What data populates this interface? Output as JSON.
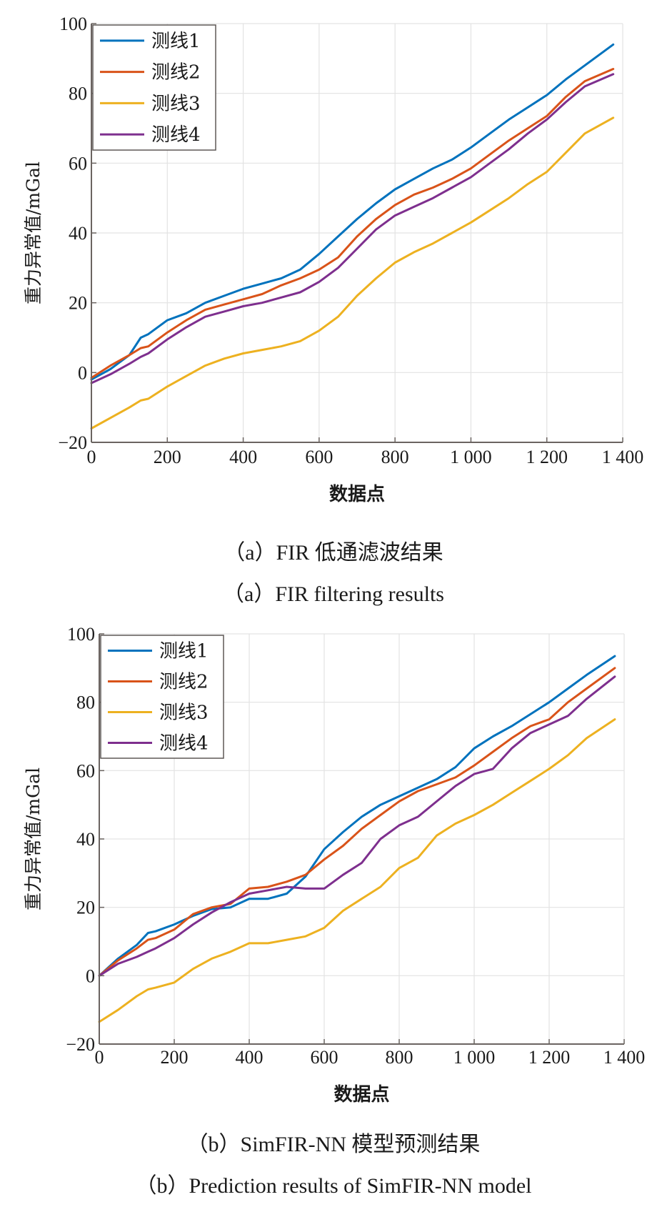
{
  "chart_data": [
    {
      "type": "line",
      "title": "",
      "xlabel": "数据点",
      "ylabel": "重力异常值/mGal",
      "xlim": [
        0,
        1400
      ],
      "ylim": [
        -20,
        100
      ],
      "xticks": [
        0,
        200,
        400,
        600,
        800,
        1000,
        1200,
        1400
      ],
      "xtick_labels": [
        "0",
        "200",
        "400",
        "600",
        "800",
        "1 000",
        "1 200",
        "1 400"
      ],
      "yticks": [
        -20,
        0,
        20,
        40,
        60,
        80,
        100
      ],
      "ytick_labels": [
        "−20",
        "0",
        "20",
        "40",
        "60",
        "80",
        "100"
      ],
      "grid": true,
      "legend_position": "top-left",
      "x": [
        0,
        50,
        100,
        130,
        150,
        200,
        250,
        300,
        350,
        400,
        450,
        500,
        550,
        600,
        650,
        700,
        750,
        800,
        850,
        900,
        950,
        1000,
        1050,
        1100,
        1150,
        1200,
        1250,
        1300,
        1375
      ],
      "series": [
        {
          "name": "测线1",
          "color": "#0072BD",
          "values": [
            -2,
            1,
            5,
            10,
            11,
            15,
            17,
            20,
            22,
            24,
            25.5,
            27,
            29.5,
            34,
            39,
            44,
            48.5,
            52.5,
            55.5,
            58.5,
            61,
            64.5,
            68.5,
            72.5,
            76,
            79.5,
            84,
            88,
            94
          ]
        },
        {
          "name": "测线2",
          "color": "#D95319",
          "values": [
            -1.5,
            2,
            5,
            7,
            7.5,
            11.5,
            15,
            18,
            19.5,
            21,
            22.5,
            25,
            27,
            29.5,
            33,
            39,
            44,
            48,
            51,
            53,
            55.5,
            58.5,
            62.5,
            66.5,
            70,
            73.5,
            79,
            83.5,
            87
          ]
        },
        {
          "name": "测线3",
          "color": "#EDB120",
          "values": [
            -16,
            -13,
            -10,
            -8,
            -7.5,
            -4,
            -1,
            2,
            4,
            5.5,
            6.5,
            7.5,
            9,
            12,
            16,
            22,
            27,
            31.5,
            34.5,
            37,
            40,
            43,
            46.5,
            50,
            54,
            57.5,
            63,
            68.5,
            73
          ]
        },
        {
          "name": "测线4",
          "color": "#7E2F8E",
          "values": [
            -3,
            -0.5,
            2.5,
            4.5,
            5.5,
            9.5,
            13,
            16,
            17.5,
            19,
            20,
            21.5,
            23,
            26,
            30,
            35.5,
            41,
            45,
            47.5,
            50,
            53,
            56,
            60,
            64,
            68.5,
            72.5,
            77.5,
            82,
            85.5
          ]
        }
      ],
      "caption_cn": "（a）FIR 低通滤波结果",
      "caption_en": "（a）FIR filtering results"
    },
    {
      "type": "line",
      "title": "",
      "xlabel": "数据点",
      "ylabel": "重力异常值/mGal",
      "xlim": [
        0,
        1400
      ],
      "ylim": [
        -20,
        100
      ],
      "xticks": [
        0,
        200,
        400,
        600,
        800,
        1000,
        1200,
        1400
      ],
      "xtick_labels": [
        "0",
        "200",
        "400",
        "600",
        "800",
        "1 000",
        "1 200",
        "1 400"
      ],
      "yticks": [
        -20,
        0,
        20,
        40,
        60,
        80,
        100
      ],
      "ytick_labels": [
        "−20",
        "0",
        "20",
        "40",
        "60",
        "80",
        "100"
      ],
      "grid": true,
      "legend_position": "top-left",
      "x": [
        0,
        50,
        100,
        130,
        150,
        200,
        250,
        300,
        350,
        400,
        450,
        500,
        550,
        600,
        650,
        700,
        750,
        800,
        850,
        900,
        950,
        1000,
        1050,
        1100,
        1150,
        1200,
        1250,
        1300,
        1375
      ],
      "series": [
        {
          "name": "测线1",
          "color": "#0072BD",
          "values": [
            0,
            5,
            9,
            12.5,
            13,
            15,
            17.5,
            19.5,
            20,
            22.5,
            22.5,
            24,
            29,
            37,
            42,
            46.5,
            50,
            52.5,
            55,
            57.5,
            61,
            66.5,
            70,
            73,
            76.5,
            80,
            84,
            88,
            93.5
          ]
        },
        {
          "name": "测线2",
          "color": "#D95319",
          "values": [
            0,
            4.5,
            8,
            10.5,
            11,
            13.5,
            18,
            20,
            21,
            25.5,
            26,
            27.5,
            29.5,
            34,
            38,
            43,
            47,
            51,
            54,
            56,
            58,
            61.5,
            65.5,
            69.5,
            73,
            75,
            80,
            84,
            90
          ]
        },
        {
          "name": "测线3",
          "color": "#EDB120",
          "values": [
            -13.5,
            -10,
            -6,
            -4,
            -3.5,
            -2,
            2,
            5,
            7,
            9.5,
            9.5,
            10.5,
            11.5,
            14,
            19,
            22.5,
            26,
            31.5,
            34.5,
            41,
            44.5,
            47,
            50,
            53.5,
            57,
            60.5,
            64.5,
            69.5,
            75
          ]
        },
        {
          "name": "测线4",
          "color": "#7E2F8E",
          "values": [
            0,
            3.5,
            5.5,
            7,
            8,
            11,
            15,
            18.5,
            21.5,
            24,
            25,
            26,
            25.5,
            25.5,
            29.5,
            33,
            40,
            44,
            46.5,
            51,
            55.5,
            59,
            60.5,
            66.5,
            71,
            73.5,
            76,
            81,
            87.5
          ]
        }
      ],
      "caption_cn": "（b）SimFIR-NN 模型预测结果",
      "caption_en": "（b）Prediction results of SimFIR-NN model"
    }
  ]
}
